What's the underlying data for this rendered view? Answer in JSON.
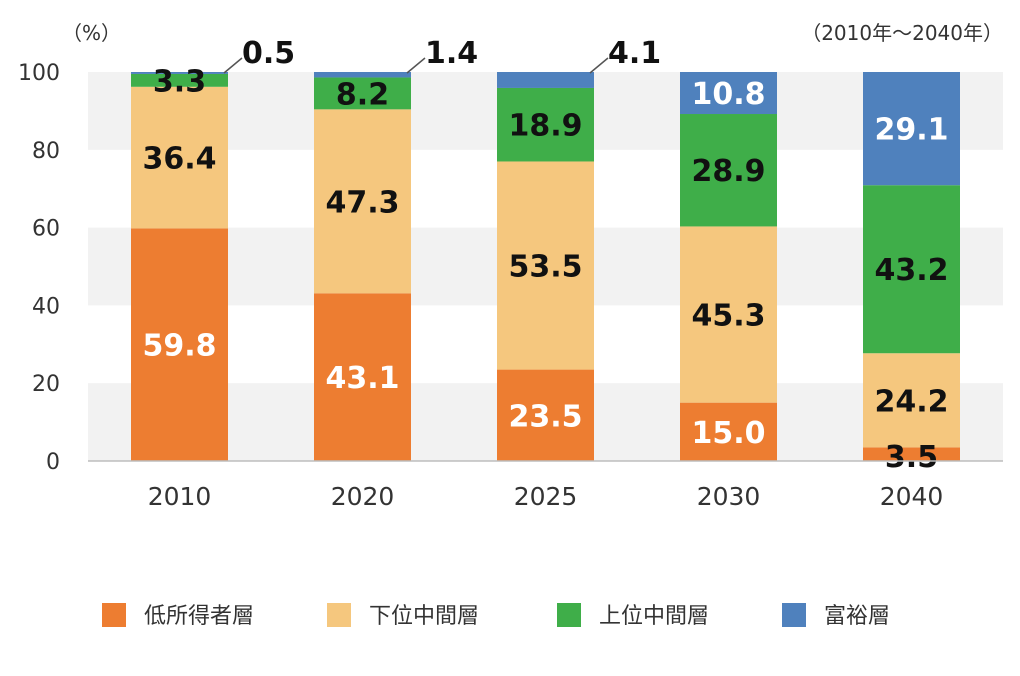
{
  "chart_data": {
    "type": "bar",
    "stacked": true,
    "unit_label": "（%）",
    "note": "（2010年～2040年）",
    "categories": [
      "2010",
      "2020",
      "2025",
      "2030",
      "2040"
    ],
    "ylim": [
      0,
      100
    ],
    "yticks": [
      0,
      20,
      40,
      60,
      80,
      100
    ],
    "grid": "alternating-bands",
    "legend_position": "bottom",
    "series": [
      {
        "name": "低所得者層",
        "color": "#ED7D31",
        "label_color": "#ffffff",
        "values": [
          59.8,
          43.1,
          23.5,
          15.0,
          3.5
        ],
        "labels": [
          "59.8",
          "43.1",
          "23.5",
          "15.0",
          "3.5"
        ]
      },
      {
        "name": "下位中間層",
        "color": "#F5C77E",
        "label_color": "#111111",
        "values": [
          36.4,
          47.3,
          53.5,
          45.3,
          24.2
        ],
        "labels": [
          "36.4",
          "47.3",
          "53.5",
          "45.3",
          "24.2"
        ]
      },
      {
        "name": "上位中間層",
        "color": "#3FAE49",
        "label_color": "#111111",
        "values": [
          3.3,
          8.2,
          18.9,
          28.9,
          43.2
        ],
        "labels": [
          "3.3",
          "8.2",
          "18.9",
          "28.9",
          "43.2"
        ]
      },
      {
        "name": "富裕層",
        "color": "#4F81BD",
        "label_color": "#ffffff",
        "values": [
          0.5,
          1.4,
          4.1,
          10.8,
          29.1
        ],
        "labels": [
          "0.5",
          "1.4",
          "4.1",
          "10.8",
          "29.1"
        ]
      }
    ]
  }
}
